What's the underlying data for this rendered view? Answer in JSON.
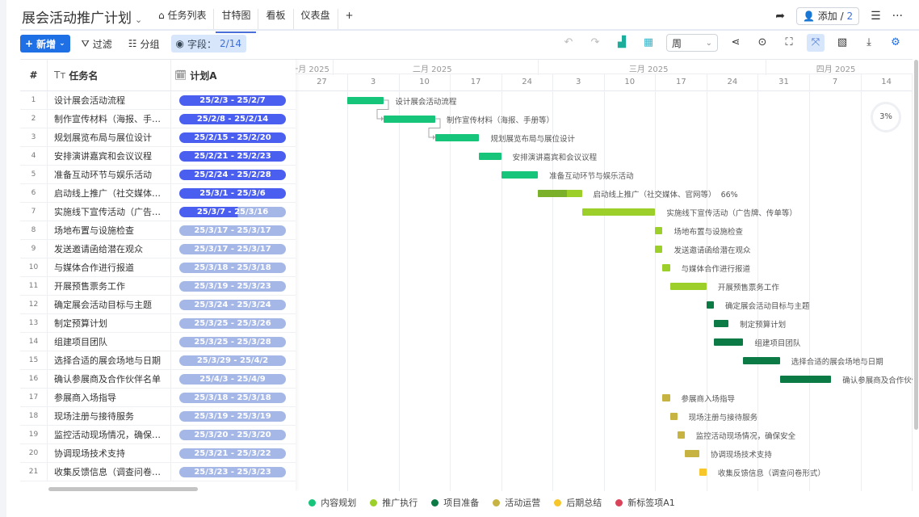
{
  "header": {
    "title": "展会活动推广计划",
    "tabs": [
      {
        "label": "任务列表",
        "icon": "home-icon"
      },
      {
        "label": "甘特图",
        "active": true
      },
      {
        "label": "看板"
      },
      {
        "label": "仪表盘"
      }
    ],
    "add_tab": "+",
    "add_member_label": "添加 /",
    "member_count": "2"
  },
  "toolbar": {
    "new_label": "新增",
    "filter_label": "过滤",
    "group_label": "分组",
    "fields_label": "字段：",
    "fields_value": "2/14",
    "scale_value": "周"
  },
  "table": {
    "col_index": "#",
    "col_name": "任务名",
    "col_plan": "计划A"
  },
  "timeline": {
    "months": [
      {
        "label": "一月 2025",
        "start": "2025-01-01"
      },
      {
        "label": "二月 2025",
        "start": "2025-02-01"
      },
      {
        "label": "三月 2025",
        "start": "2025-03-01"
      },
      {
        "label": "四月 2025",
        "start": "2025-04-01"
      }
    ],
    "weeks": [
      {
        "label": "27",
        "start": "2025-01-27"
      },
      {
        "label": "3",
        "start": "2025-02-03"
      },
      {
        "label": "10",
        "start": "2025-02-10"
      },
      {
        "label": "17",
        "start": "2025-02-17"
      },
      {
        "label": "24",
        "start": "2025-02-24"
      },
      {
        "label": "3",
        "start": "2025-03-03"
      },
      {
        "label": "10",
        "start": "2025-03-10"
      },
      {
        "label": "17",
        "start": "2025-03-17"
      },
      {
        "label": "24",
        "start": "2025-03-24"
      },
      {
        "label": "31",
        "start": "2025-03-31"
      },
      {
        "label": "7",
        "start": "2025-04-07"
      },
      {
        "label": "14",
        "start": "2025-04-14"
      }
    ]
  },
  "overall_progress": "3%",
  "groups": [
    {
      "name": "内容规划",
      "color": "#16c47a"
    },
    {
      "name": "推广执行",
      "color": "#9dcf2a"
    },
    {
      "name": "项目准备",
      "color": "#0b7a45"
    },
    {
      "name": "活动运营",
      "color": "#c7b342"
    },
    {
      "name": "后期总结",
      "color": "#f7c62a"
    },
    {
      "name": "新标签项A1",
      "color": "#d9435a"
    }
  ],
  "colors": {
    "plan_active": "#4a5ff0",
    "plan_future": "#a4b7e6",
    "progress_dark": "#7ab02a"
  },
  "tasks": [
    {
      "n": "1",
      "name": "设计展会活动流程",
      "plan": "25/2/3 - 25/2/7",
      "start": "2025-02-03",
      "end": "2025-02-07",
      "g": 0,
      "pf": 1
    },
    {
      "n": "2",
      "name": "制作宣传材料（海报、手册等）",
      "plan": "25/2/8 - 25/2/14",
      "start": "2025-02-08",
      "end": "2025-02-14",
      "g": 0,
      "pf": 1
    },
    {
      "n": "3",
      "name": "规划展览布局与展位设计",
      "plan": "25/2/15 - 25/2/20",
      "start": "2025-02-15",
      "end": "2025-02-20",
      "g": 0,
      "pf": 1
    },
    {
      "n": "4",
      "name": "安排演讲嘉宾和会议议程",
      "plan": "25/2/21 - 25/2/23",
      "start": "2025-02-21",
      "end": "2025-02-23",
      "g": 0,
      "pf": 1
    },
    {
      "n": "5",
      "name": "准备互动环节与娱乐活动",
      "plan": "25/2/24 - 25/2/28",
      "start": "2025-02-24",
      "end": "2025-02-28",
      "g": 0,
      "pf": 1
    },
    {
      "n": "6",
      "name": "启动线上推广（社交媒体、官网等）",
      "plan": "25/3/1 - 25/3/6",
      "start": "2025-03-01",
      "end": "2025-03-06",
      "g": 1,
      "pf": 1,
      "progress": "66%"
    },
    {
      "n": "7",
      "name": "实施线下宣传活动（广告牌、传单等）",
      "plan": "25/3/7 - 25/3/16",
      "start": "2025-03-07",
      "end": "2025-03-16",
      "g": 1,
      "pf": 0.55
    },
    {
      "n": "8",
      "name": "场地布置与设施检查",
      "plan": "25/3/17 - 25/3/17",
      "start": "2025-03-17",
      "end": "2025-03-17",
      "g": 1,
      "pf": 0
    },
    {
      "n": "9",
      "name": "发送邀请函给潜在观众",
      "plan": "25/3/17 - 25/3/17",
      "start": "2025-03-17",
      "end": "2025-03-17",
      "g": 1,
      "pf": 0
    },
    {
      "n": "10",
      "name": "与媒体合作进行报道",
      "plan": "25/3/18 - 25/3/18",
      "start": "2025-03-18",
      "end": "2025-03-18",
      "g": 1,
      "pf": 0
    },
    {
      "n": "11",
      "name": "开展预售票务工作",
      "plan": "25/3/19 - 25/3/23",
      "start": "2025-03-19",
      "end": "2025-03-23",
      "g": 1,
      "pf": 0
    },
    {
      "n": "12",
      "name": "确定展会活动目标与主题",
      "plan": "25/3/24 - 25/3/24",
      "start": "2025-03-24",
      "end": "2025-03-24",
      "g": 2,
      "pf": 0
    },
    {
      "n": "13",
      "name": "制定预算计划",
      "plan": "25/3/25 - 25/3/26",
      "start": "2025-03-25",
      "end": "2025-03-26",
      "g": 2,
      "pf": 0
    },
    {
      "n": "14",
      "name": "组建项目团队",
      "plan": "25/3/25 - 25/3/28",
      "start": "2025-03-25",
      "end": "2025-03-28",
      "g": 2,
      "pf": 0
    },
    {
      "n": "15",
      "name": "选择合适的展会场地与日期",
      "plan": "25/3/29 - 25/4/2",
      "start": "2025-03-29",
      "end": "2025-04-02",
      "g": 2,
      "pf": 0
    },
    {
      "n": "16",
      "name": "确认参展商及合作伙伴名单",
      "plan": "25/4/3 - 25/4/9",
      "start": "2025-04-03",
      "end": "2025-04-09",
      "g": 2,
      "pf": 0
    },
    {
      "n": "17",
      "name": "参展商入场指导",
      "plan": "25/3/18 - 25/3/18",
      "start": "2025-03-18",
      "end": "2025-03-18",
      "g": 3,
      "pf": 0
    },
    {
      "n": "18",
      "name": "现场注册与接待服务",
      "plan": "25/3/19 - 25/3/19",
      "start": "2025-03-19",
      "end": "2025-03-19",
      "g": 3,
      "pf": 0
    },
    {
      "n": "19",
      "name": "监控活动现场情况，确保安全",
      "plan": "25/3/20 - 25/3/20",
      "start": "2025-03-20",
      "end": "2025-03-20",
      "g": 3,
      "pf": 0
    },
    {
      "n": "20",
      "name": "协调现场技术支持",
      "plan": "25/3/21 - 25/3/22",
      "start": "2025-03-21",
      "end": "2025-03-22",
      "g": 3,
      "pf": 0
    },
    {
      "n": "21",
      "name": "收集反馈信息（调查问卷形式）",
      "plan": "25/3/23 - 25/3/23",
      "start": "2025-03-23",
      "end": "2025-03-23",
      "g": 4,
      "pf": 0
    }
  ]
}
